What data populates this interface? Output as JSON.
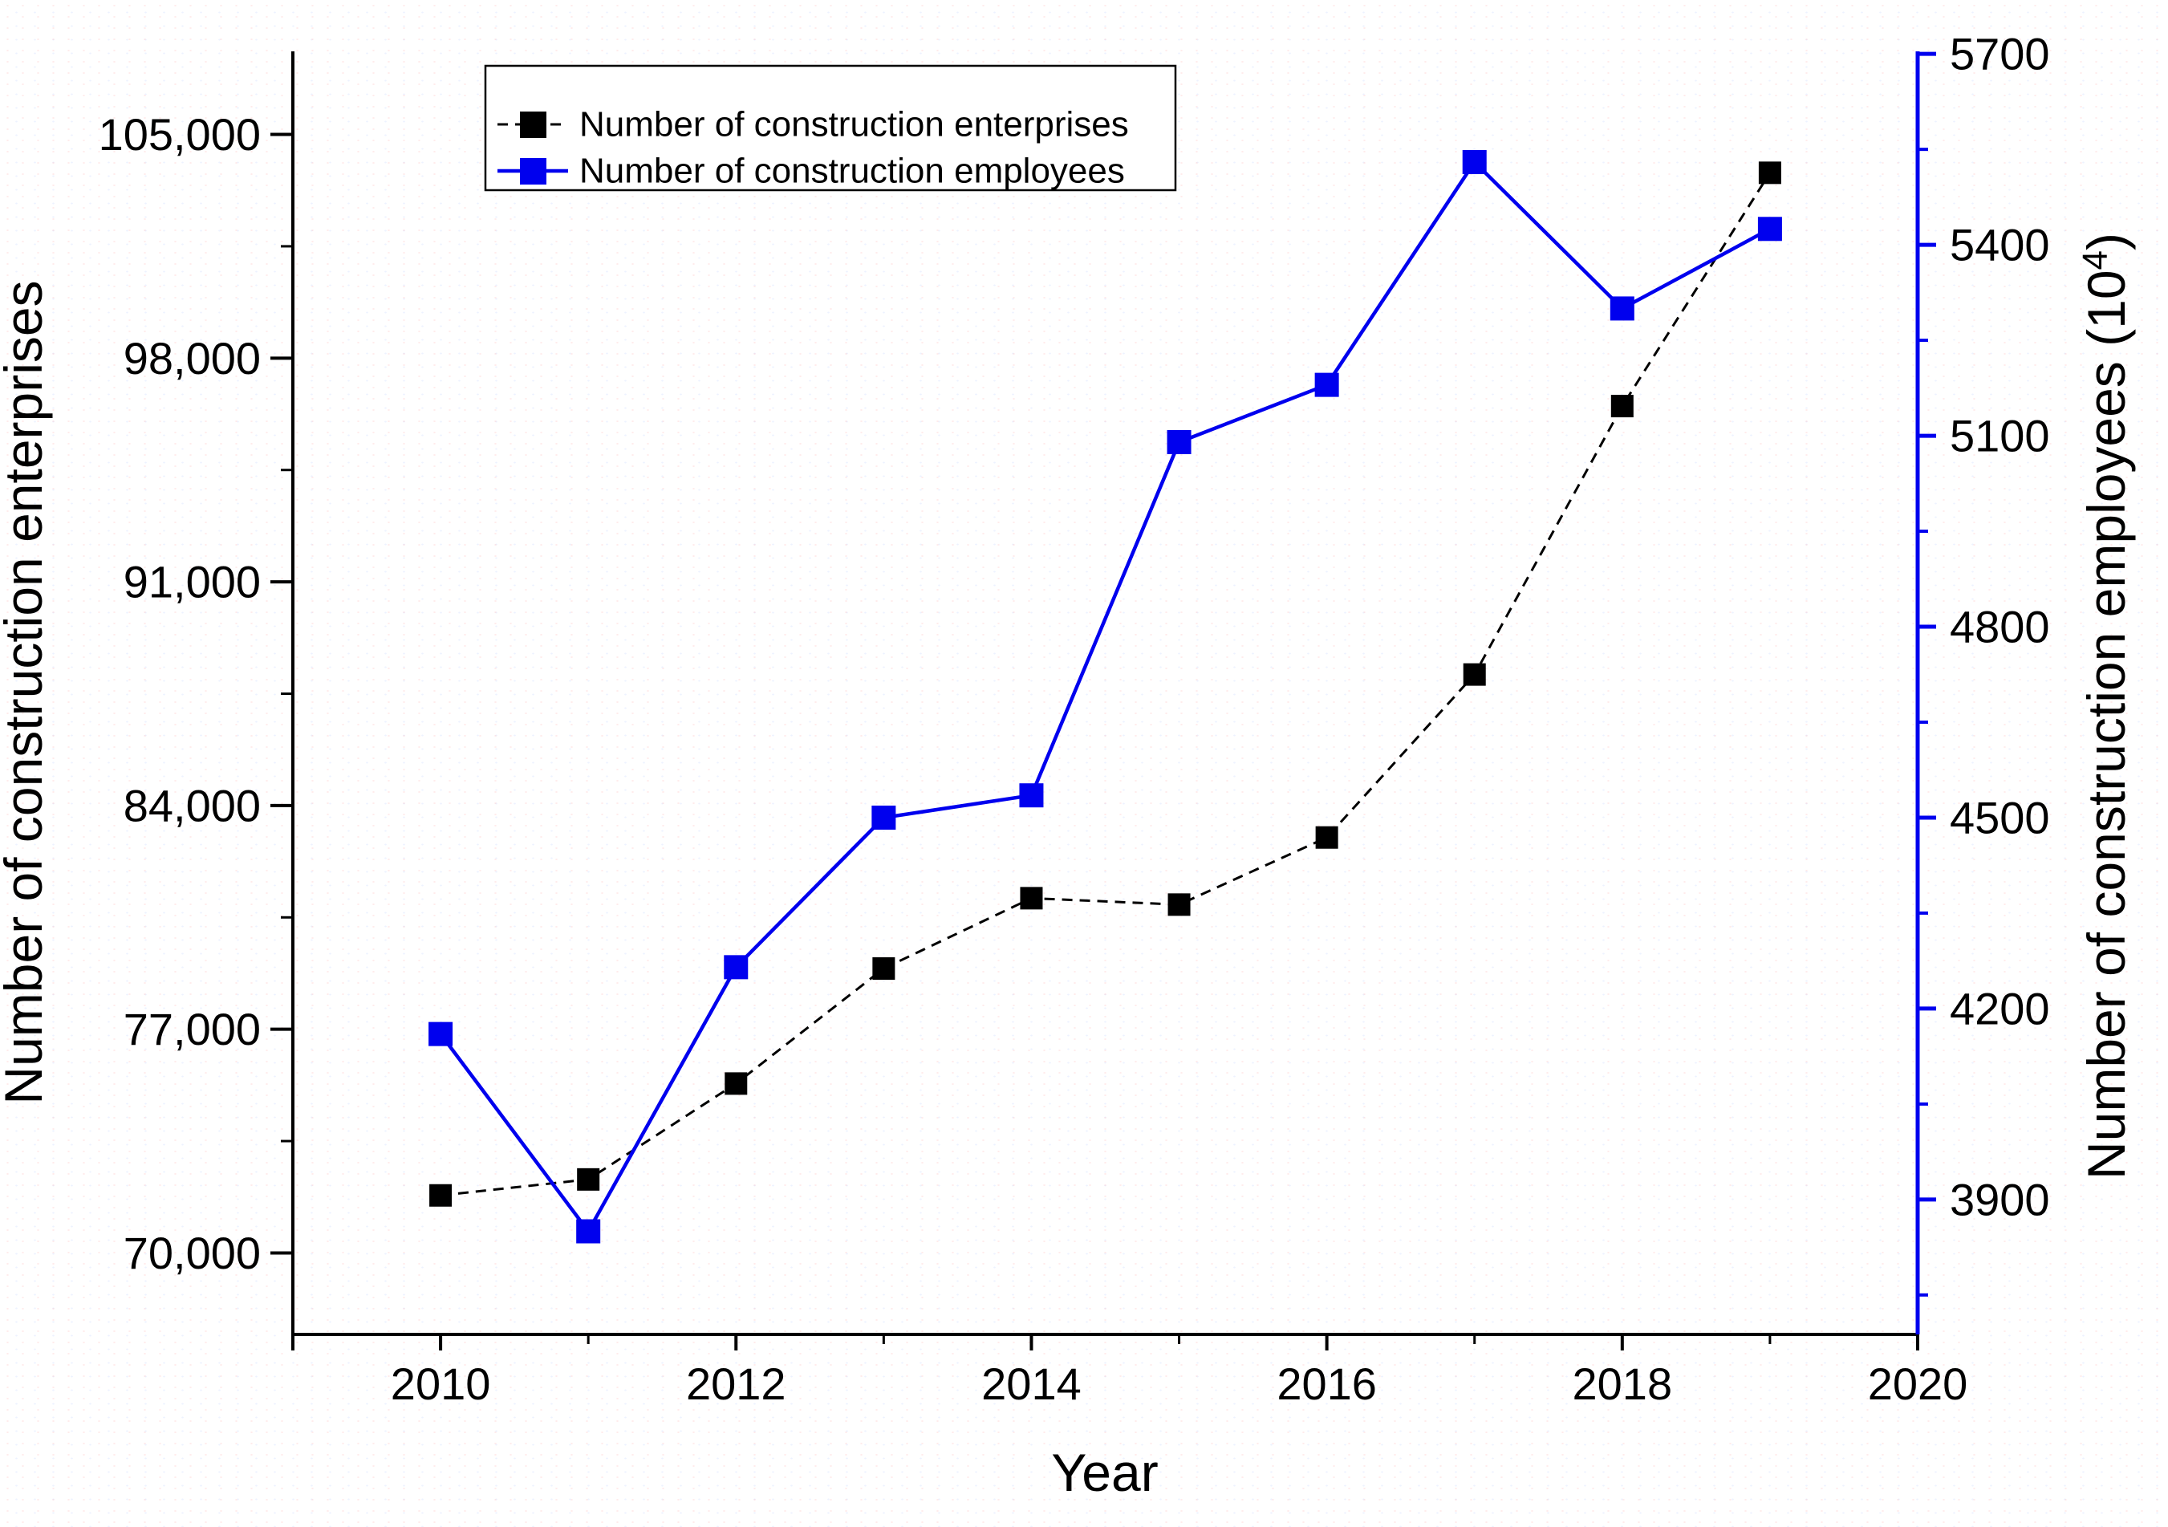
{
  "figure": {
    "background": "#ffffff",
    "text_color": "#000000"
  },
  "chart_data": {
    "type": "line",
    "title": "",
    "x": [
      2010,
      2011,
      2012,
      2013,
      2014,
      2015,
      2016,
      2017,
      2018,
      2019
    ],
    "series": [
      {
        "name": "Number of construction enterprises",
        "axis": "left",
        "color": "#000000",
        "line_style": "dashed",
        "marker": "square",
        "values": [
          71800,
          72300,
          75300,
          78900,
          81100,
          80900,
          83000,
          88100,
          96500,
          103800
        ]
      },
      {
        "name": "Number of construction employees",
        "axis": "right",
        "color": "#0000EE",
        "line_style": "solid",
        "marker": "square",
        "values": [
          4160,
          3850,
          4265,
          4500,
          4535,
          5090,
          5180,
          5530,
          5300,
          5425
        ]
      }
    ],
    "x_axis": {
      "label": "Year",
      "min": 2009,
      "max": 2020,
      "major_ticks": [
        2010,
        2012,
        2014,
        2016,
        2018,
        2020
      ],
      "minor_ticks": [
        2011,
        2013,
        2015,
        2017,
        2019
      ],
      "edge_tick": 2009
    },
    "left_axis": {
      "label": "Number of construction enterprises",
      "min": 67450,
      "max": 107600,
      "major_ticks": [
        70000,
        77000,
        84000,
        91000,
        98000,
        105000
      ],
      "minor_step": 3500,
      "color": "#000000",
      "tick_format": "comma"
    },
    "right_axis": {
      "label_prefix": "Number of construction employees (10",
      "label_sup": "4",
      "label_suffix": ")",
      "min": 3688,
      "max": 5704,
      "major_ticks": [
        3900,
        4200,
        4500,
        4800,
        5100,
        5400,
        5700
      ],
      "minor_step": 150,
      "color": "#0000EE",
      "tick_format": "plain"
    },
    "legend": {
      "entries": [
        "Number of construction enterprises",
        "Number of construction employees"
      ],
      "border_color": "#000000",
      "position": "top-left-inside"
    },
    "grid": false
  }
}
